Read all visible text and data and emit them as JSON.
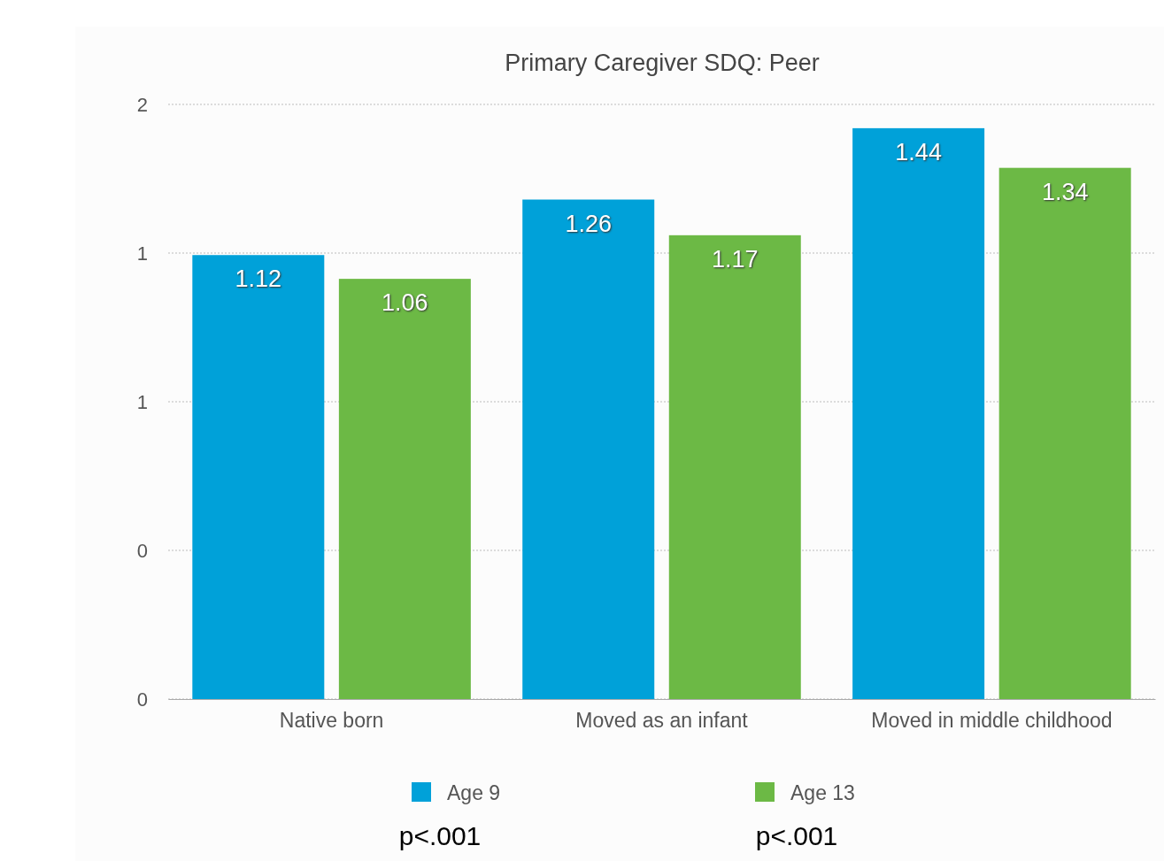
{
  "chart_data": {
    "type": "bar",
    "title": "Primary Caregiver SDQ: Peer",
    "categories": [
      "Native born",
      "Moved as an infant",
      "Moved in middle childhood"
    ],
    "series": [
      {
        "name": "Age 9",
        "color": "#00a1d9",
        "values": [
          1.12,
          1.26,
          1.44
        ]
      },
      {
        "name": "Age 13",
        "color": "#6cb945",
        "values": [
          1.06,
          1.17,
          1.34
        ]
      }
    ],
    "ylim": [
      0,
      1.5
    ],
    "yticks": [
      0,
      {
        "value": 0.375,
        "label": "0"
      },
      {
        "value": 0.75,
        "label": "1"
      },
      {
        "value": 1.125,
        "label": "1"
      },
      {
        "value": 1.5,
        "label": "2"
      }
    ],
    "grid": "y",
    "legend": "bottom",
    "data_labels": true,
    "annotations": [
      "p<.001",
      "p<.001"
    ]
  }
}
